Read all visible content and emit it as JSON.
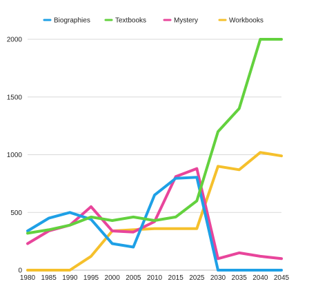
{
  "chart_data": {
    "type": "line",
    "title": "",
    "xlabel": "",
    "ylabel": "",
    "x": [
      1980,
      1985,
      1990,
      1995,
      2000,
      2005,
      2010,
      2015,
      2025,
      2030,
      2035,
      2040,
      2045
    ],
    "x_tick_labels": [
      "1980",
      "1985",
      "1990",
      "1995",
      "2000",
      "2005",
      "2010",
      "2015",
      "2025",
      "2030",
      "2035",
      "2040",
      "2045"
    ],
    "y_ticks": [
      0,
      500,
      1000,
      1500,
      2000
    ],
    "y_tick_labels": [
      "0",
      "500",
      "1000",
      "1500",
      "2000"
    ],
    "ylim": [
      0,
      2000
    ],
    "grid": true,
    "legend_position": "top",
    "series": [
      {
        "name": "Biographies",
        "color": "#1ea0e6",
        "values": [
          340,
          450,
          500,
          440,
          230,
          200,
          650,
          795,
          805,
          0,
          0,
          0,
          0
        ]
      },
      {
        "name": "Textbooks",
        "color": "#63d13e",
        "values": [
          320,
          350,
          390,
          460,
          430,
          460,
          430,
          460,
          600,
          1200,
          1400,
          2000,
          2000
        ]
      },
      {
        "name": "Mystery",
        "color": "#e8459b",
        "values": [
          230,
          340,
          390,
          550,
          340,
          330,
          420,
          810,
          880,
          100,
          150,
          120,
          100
        ]
      },
      {
        "name": "Workbooks",
        "color": "#f5c02c",
        "values": [
          0,
          0,
          0,
          120,
          340,
          350,
          360,
          360,
          360,
          900,
          870,
          1020,
          990
        ]
      }
    ]
  }
}
